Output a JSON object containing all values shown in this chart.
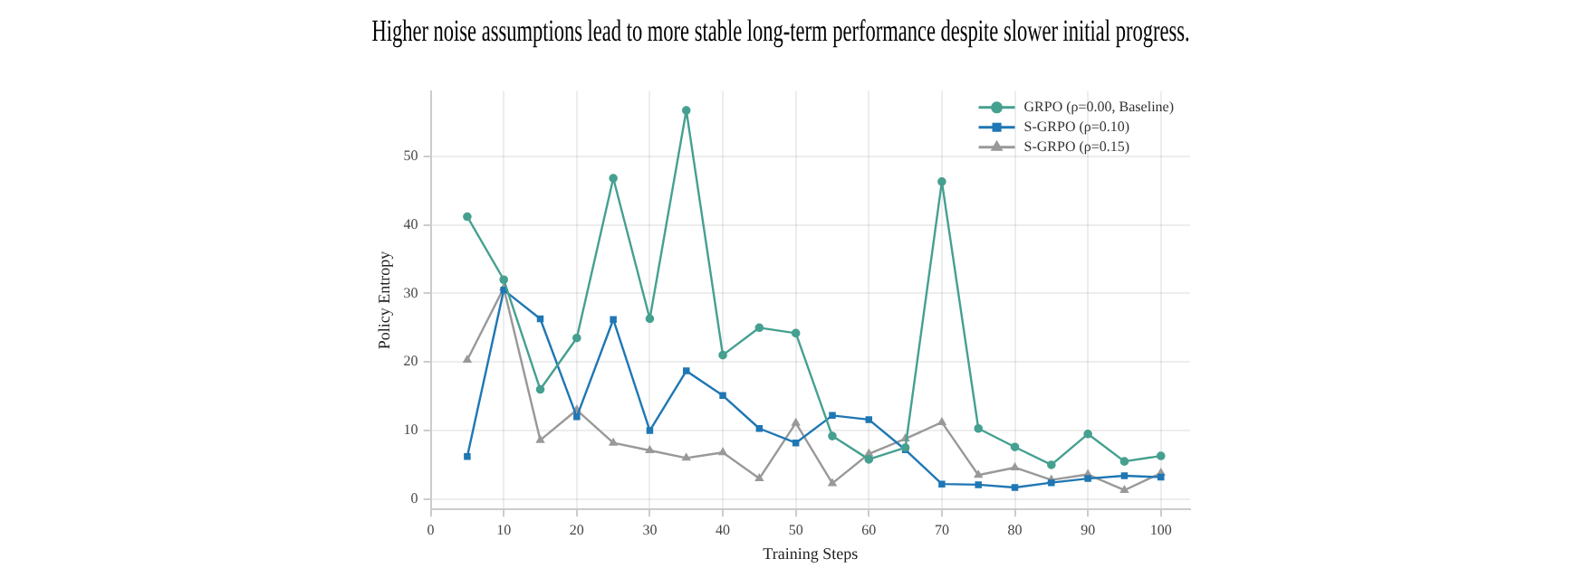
{
  "chart_data": {
    "type": "line",
    "title": "Higher noise assumptions lead to more stable long-term performance despite slower initial progress.",
    "xlabel": "Training Steps",
    "ylabel": "Policy Entropy",
    "x": [
      5,
      10,
      15,
      20,
      25,
      30,
      35,
      40,
      45,
      50,
      55,
      60,
      65,
      70,
      75,
      80,
      85,
      90,
      95,
      100
    ],
    "series": [
      {
        "name": "GRPO (ρ=0.00, Baseline)",
        "color": "#45a090",
        "marker": "circle",
        "values": [
          41.2,
          32,
          16,
          23.5,
          46.8,
          26.3,
          56.7,
          21,
          25,
          24.2,
          9.2,
          5.8,
          7.5,
          46.3,
          10.3,
          7.6,
          5,
          9.5,
          5.5,
          6.3
        ]
      },
      {
        "name": "S-GRPO (ρ=0.10)",
        "color": "#1f77b4",
        "marker": "square",
        "values": [
          6.2,
          30.5,
          26.3,
          12,
          26.2,
          10,
          18.7,
          15.1,
          10.3,
          8.2,
          12.2,
          11.6,
          7.2,
          2.2,
          2.1,
          1.7,
          2.4,
          3,
          3.4,
          3.2
        ]
      },
      {
        "name": "S-GRPO (ρ=0.15)",
        "color": "#999999",
        "marker": "triangle",
        "values": [
          20.3,
          30.8,
          8.6,
          13,
          8.2,
          7.1,
          6,
          6.8,
          3,
          11.1,
          2.3,
          6.6,
          8.8,
          11.2,
          3.5,
          4.6,
          2.8,
          3.6,
          1.3,
          3.8
        ]
      }
    ],
    "xlim": [
      0,
      104
    ],
    "xticks": [
      0,
      10,
      20,
      30,
      40,
      50,
      60,
      70,
      80,
      90,
      100
    ],
    "ylim": [
      -1.5,
      59.5
    ],
    "yticks": [
      0,
      10,
      20,
      30,
      40,
      50
    ],
    "grid": true,
    "legend": "top right",
    "line_style": "solid"
  }
}
